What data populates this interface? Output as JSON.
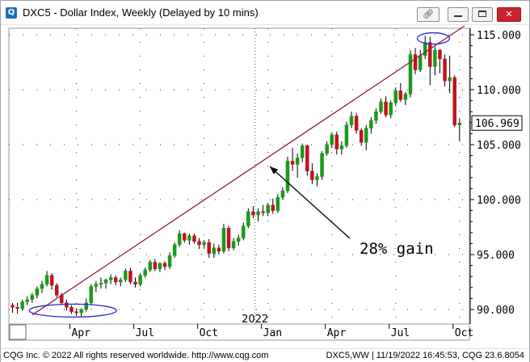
{
  "window": {
    "title": "DXC5 - Dollar Index, Weekly (Delayed by 10 mins)",
    "app_icon": "Q",
    "buttons": [
      "link-icon",
      "minimize-icon",
      "maximize-icon",
      "close-icon"
    ]
  },
  "status": {
    "left": "CQG Inc. © 2022 All rights reserved worldwide. http://www.cqg.com",
    "right": "DXC5,WW | 11/19/2022 16:45:53, CQG 23.6.8054"
  },
  "colors": {
    "up_candle": "#1a9a1a",
    "down_candle": "#c0141e",
    "trendline": "#8b1d4a",
    "ellipse": "#2a2ac8",
    "last_price_box": "#ffffff"
  },
  "chart_data": {
    "type": "candlestick",
    "symbol": "DXC5",
    "interval": "Weekly",
    "x_tick_labels": [
      "Apr",
      "Jul",
      "Oct",
      "Jan",
      "Apr",
      "Jul",
      "Oct"
    ],
    "year_label": "2022",
    "ylim": [
      89.0,
      116.0
    ],
    "y_ticks": [
      "115.000",
      "110.000",
      "105.000",
      "100.000",
      "95.000",
      "90.000"
    ],
    "last_price": "106.969",
    "annotation": "28% gain",
    "trendline": {
      "from": {
        "week": 4,
        "value": 89.5
      },
      "to": {
        "week": 92,
        "value": 115.8
      }
    },
    "ellipses": [
      {
        "center_week": 9,
        "center_value": 89.9
      },
      {
        "center_week": 87,
        "center_value": 114.7
      }
    ],
    "weeks": [
      [
        90.4,
        90.6,
        89.7,
        90.2
      ],
      [
        90.2,
        90.6,
        89.6,
        90.1
      ],
      [
        90.1,
        90.9,
        89.9,
        90.7
      ],
      [
        90.7,
        91.2,
        90.4,
        90.9
      ],
      [
        90.9,
        91.5,
        90.6,
        91.3
      ],
      [
        91.3,
        92.1,
        91.0,
        91.9
      ],
      [
        91.9,
        92.6,
        91.5,
        92.3
      ],
      [
        92.3,
        93.5,
        92.1,
        93.1
      ],
      [
        93.1,
        93.3,
        91.8,
        92.2
      ],
      [
        92.2,
        92.4,
        91.1,
        91.3
      ],
      [
        91.3,
        91.5,
        90.4,
        90.6
      ],
      [
        90.6,
        90.9,
        89.9,
        90.2
      ],
      [
        90.2,
        90.4,
        89.6,
        89.8
      ],
      [
        89.8,
        90.1,
        89.4,
        89.7
      ],
      [
        89.7,
        90.1,
        89.3,
        90.0
      ],
      [
        90.0,
        91.0,
        89.8,
        90.6
      ],
      [
        90.6,
        92.3,
        90.4,
        92.1
      ],
      [
        92.1,
        92.6,
        91.6,
        92.3
      ],
      [
        92.3,
        92.9,
        91.9,
        92.4
      ],
      [
        92.4,
        92.8,
        91.9,
        92.7
      ],
      [
        92.7,
        93.2,
        92.3,
        92.9
      ],
      [
        92.9,
        93.1,
        92.2,
        92.5
      ],
      [
        92.5,
        92.9,
        92.1,
        92.7
      ],
      [
        92.7,
        93.7,
        92.5,
        93.5
      ],
      [
        93.5,
        93.8,
        92.3,
        92.5
      ],
      [
        92.5,
        92.9,
        92.0,
        92.3
      ],
      [
        92.3,
        93.3,
        92.1,
        93.1
      ],
      [
        93.1,
        93.8,
        92.9,
        93.6
      ],
      [
        93.6,
        94.5,
        93.4,
        94.3
      ],
      [
        94.3,
        94.6,
        93.5,
        93.7
      ],
      [
        93.7,
        94.3,
        93.4,
        94.2
      ],
      [
        94.2,
        94.4,
        93.6,
        93.9
      ],
      [
        93.9,
        95.2,
        93.7,
        94.9
      ],
      [
        94.9,
        96.1,
        94.7,
        95.9
      ],
      [
        95.9,
        97.2,
        95.7,
        96.9
      ],
      [
        96.9,
        97.0,
        96.1,
        96.3
      ],
      [
        96.3,
        96.9,
        95.9,
        96.7
      ],
      [
        96.7,
        96.9,
        96.0,
        96.2
      ],
      [
        96.2,
        96.5,
        95.5,
        95.9
      ],
      [
        95.9,
        96.3,
        95.6,
        96.1
      ],
      [
        96.1,
        96.4,
        94.7,
        95.1
      ],
      [
        95.1,
        96.0,
        94.7,
        95.6
      ],
      [
        95.6,
        95.9,
        95.0,
        95.3
      ],
      [
        95.3,
        97.8,
        95.1,
        97.4
      ],
      [
        97.4,
        97.6,
        95.3,
        95.6
      ],
      [
        95.6,
        96.5,
        95.4,
        96.2
      ],
      [
        96.2,
        96.8,
        95.8,
        96.5
      ],
      [
        96.5,
        97.9,
        96.3,
        97.6
      ],
      [
        97.6,
        99.2,
        97.4,
        98.9
      ],
      [
        98.9,
        99.4,
        98.3,
        98.6
      ],
      [
        98.6,
        99.2,
        98.0,
        98.9
      ],
      [
        98.9,
        99.5,
        98.5,
        98.8
      ],
      [
        98.8,
        99.7,
        98.5,
        99.5
      ],
      [
        99.5,
        100.1,
        98.7,
        99.0
      ],
      [
        99.0,
        100.5,
        98.8,
        100.2
      ],
      [
        100.2,
        101.1,
        100.0,
        100.8
      ],
      [
        100.8,
        103.9,
        100.6,
        103.5
      ],
      [
        103.5,
        104.7,
        102.6,
        103.2
      ],
      [
        103.2,
        104.2,
        102.0,
        103.8
      ],
      [
        103.8,
        105.1,
        103.4,
        104.9
      ],
      [
        104.9,
        105.0,
        102.2,
        102.6
      ],
      [
        102.6,
        103.3,
        101.4,
        101.8
      ],
      [
        101.8,
        102.4,
        101.2,
        102.1
      ],
      [
        102.1,
        104.4,
        101.8,
        104.2
      ],
      [
        104.2,
        105.3,
        104.0,
        105.0
      ],
      [
        105.0,
        106.1,
        104.7,
        105.9
      ],
      [
        105.9,
        106.2,
        104.1,
        104.6
      ],
      [
        104.6,
        105.3,
        104.1,
        104.9
      ],
      [
        104.9,
        107.1,
        104.7,
        106.8
      ],
      [
        106.8,
        108.0,
        106.5,
        107.6
      ],
      [
        107.6,
        107.9,
        106.0,
        106.3
      ],
      [
        106.3,
        106.5,
        104.9,
        105.2
      ],
      [
        105.2,
        106.8,
        104.5,
        106.5
      ],
      [
        106.5,
        107.5,
        106.0,
        107.2
      ],
      [
        107.2,
        108.3,
        106.9,
        108.0
      ],
      [
        108.0,
        109.2,
        107.8,
        108.9
      ],
      [
        108.9,
        109.4,
        107.5,
        107.7
      ],
      [
        107.7,
        109.0,
        107.4,
        108.8
      ],
      [
        108.8,
        110.2,
        108.5,
        109.9
      ],
      [
        109.9,
        110.6,
        108.9,
        109.1
      ],
      [
        109.1,
        109.8,
        108.6,
        109.6
      ],
      [
        109.6,
        113.6,
        109.3,
        113.2
      ],
      [
        113.2,
        113.8,
        111.4,
        111.8
      ],
      [
        111.8,
        113.6,
        111.6,
        113.1
      ],
      [
        113.1,
        114.9,
        112.8,
        114.3
      ],
      [
        114.3,
        114.8,
        110.4,
        112.1
      ],
      [
        112.1,
        113.9,
        111.3,
        113.6
      ],
      [
        113.6,
        113.7,
        111.5,
        112.8
      ],
      [
        112.8,
        113.2,
        110.3,
        110.8
      ],
      [
        110.8,
        113.1,
        109.7,
        111.1
      ],
      [
        111.1,
        111.3,
        106.6,
        106.8
      ],
      [
        106.8,
        107.4,
        105.3,
        106.97
      ]
    ]
  }
}
